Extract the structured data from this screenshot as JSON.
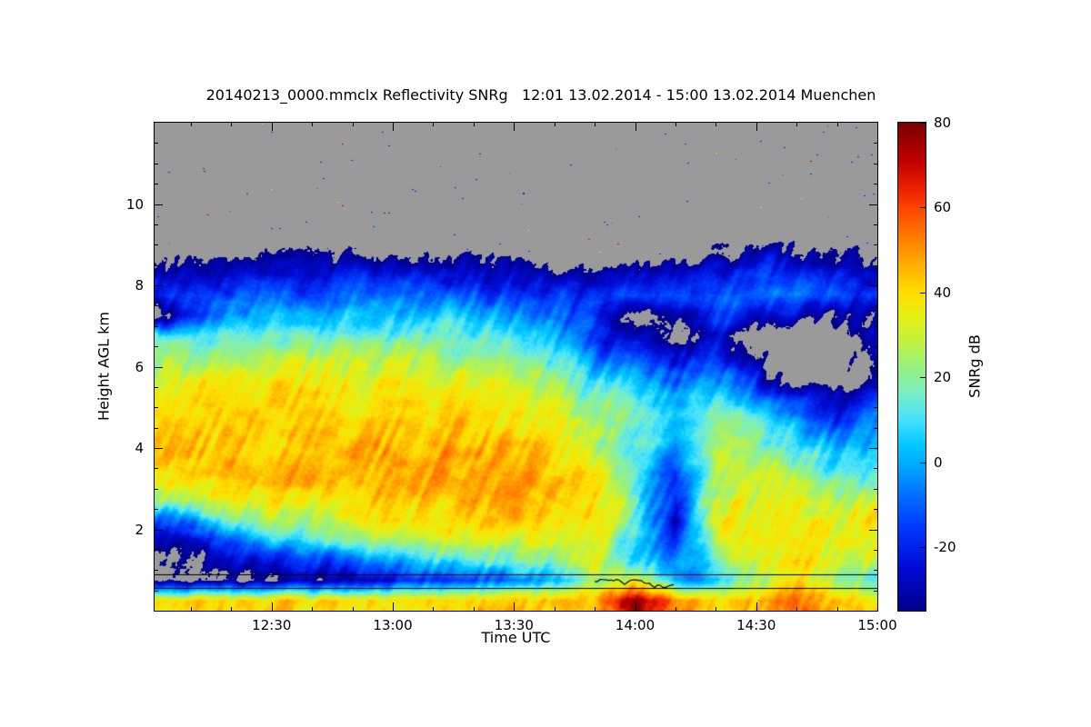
{
  "figure": {
    "title": "20140213_0000.mmclx Reflectivity SNRg   12:01 13.02.2014 - 15:00 13.02.2014 Muenchen",
    "background": "#ffffff"
  },
  "axes": {
    "x": {
      "label": "Time UTC",
      "range_minutes_utc": [
        721,
        900
      ],
      "major_ticks": [
        {
          "minutes": 750,
          "label": "12:30"
        },
        {
          "minutes": 780,
          "label": "13:00"
        },
        {
          "minutes": 810,
          "label": "13:30"
        },
        {
          "minutes": 840,
          "label": "14:00"
        },
        {
          "minutes": 870,
          "label": "14:30"
        },
        {
          "minutes": 900,
          "label": "15:00"
        }
      ],
      "minor_step_minutes": 10
    },
    "y": {
      "label": "Height AGL km",
      "range_km": [
        0,
        12
      ],
      "major_ticks": [
        {
          "km": 2,
          "label": "2"
        },
        {
          "km": 4,
          "label": "4"
        },
        {
          "km": 6,
          "label": "6"
        },
        {
          "km": 8,
          "label": "8"
        },
        {
          "km": 10,
          "label": "10"
        }
      ],
      "minor_step_km": 0.5
    }
  },
  "colorbar": {
    "label": "SNRg dB",
    "range_db": [
      -35,
      80
    ],
    "ticks": [
      {
        "db": 80,
        "label": "80"
      },
      {
        "db": 60,
        "label": "60"
      },
      {
        "db": 40,
        "label": "40"
      },
      {
        "db": 20,
        "label": "20"
      },
      {
        "db": 0,
        "label": "0"
      },
      {
        "db": -20,
        "label": "-20"
      }
    ],
    "nodata_color": "#9a9a9a",
    "stops": [
      [
        -35,
        0,
        0,
        140
      ],
      [
        -25,
        0,
        10,
        210
      ],
      [
        -15,
        0,
        60,
        255
      ],
      [
        -8,
        0,
        110,
        255
      ],
      [
        -2,
        0,
        160,
        255
      ],
      [
        4,
        0,
        200,
        255
      ],
      [
        10,
        70,
        225,
        255
      ],
      [
        16,
        120,
        238,
        200
      ],
      [
        22,
        150,
        240,
        130
      ],
      [
        28,
        190,
        242,
        70
      ],
      [
        34,
        228,
        240,
        20
      ],
      [
        40,
        255,
        222,
        0
      ],
      [
        46,
        255,
        180,
        0
      ],
      [
        52,
        255,
        132,
        0
      ],
      [
        58,
        255,
        84,
        0
      ],
      [
        64,
        240,
        36,
        0
      ],
      [
        71,
        190,
        0,
        0
      ],
      [
        80,
        122,
        0,
        0
      ]
    ]
  },
  "chart_data": {
    "type": "heatmap",
    "title": "20140213_0000.mmclx Reflectivity SNRg   12:01 13.02.2014 - 15:00 13.02.2014 Muenchen",
    "xlabel": "Time UTC",
    "ylabel": "Height AGL km",
    "value_label": "SNRg dB",
    "value_range_db": [
      -35,
      80
    ],
    "x_minutes_utc": [
      720,
      730,
      740,
      750,
      760,
      770,
      780,
      790,
      800,
      810,
      820,
      830,
      840,
      850,
      860,
      870,
      880,
      890,
      900
    ],
    "y_km": [
      0.25,
      0.75,
      1.25,
      1.75,
      2.25,
      2.75,
      3.25,
      3.75,
      4.25,
      4.75,
      5.25,
      5.75,
      6.25,
      6.75,
      7.25,
      7.75,
      8.25,
      8.75,
      9.25,
      9.75,
      10.25,
      10.75,
      11.25,
      11.75
    ],
    "nodata_value": -45,
    "columns": [
      [
        40,
        -38,
        -38,
        -30,
        -12,
        24,
        36,
        40,
        40,
        38,
        35,
        30,
        22,
        12,
        -42,
        -16,
        -24,
        -42,
        -45,
        -45,
        -45,
        -45,
        -45,
        -45
      ],
      [
        40,
        -38,
        -36,
        -26,
        -2,
        28,
        38,
        42,
        42,
        40,
        36,
        30,
        22,
        10,
        -20,
        -14,
        -26,
        -40,
        -45,
        -45,
        -45,
        -45,
        -45,
        -45
      ],
      [
        40,
        -38,
        -30,
        -12,
        14,
        32,
        40,
        42,
        42,
        40,
        36,
        32,
        24,
        14,
        -2,
        -14,
        -28,
        -40,
        -45,
        -45,
        -45,
        -45,
        -45,
        -45
      ],
      [
        40,
        -38,
        -26,
        4,
        24,
        36,
        42,
        44,
        43,
        40,
        37,
        33,
        26,
        16,
        2,
        -12,
        -26,
        -38,
        -45,
        -45,
        -45,
        -45,
        -45,
        -45
      ],
      [
        40,
        -36,
        -20,
        10,
        30,
        38,
        43,
        44,
        43,
        41,
        38,
        34,
        27,
        17,
        4,
        -10,
        -24,
        -38,
        -45,
        -45,
        -45,
        -45,
        -45,
        -45
      ],
      [
        40,
        -32,
        -12,
        18,
        34,
        40,
        44,
        45,
        44,
        42,
        39,
        35,
        28,
        18,
        6,
        -8,
        -22,
        -36,
        -45,
        -45,
        -45,
        -45,
        -45,
        -45
      ],
      [
        40,
        -26,
        0,
        25,
        38,
        43,
        45,
        46,
        44,
        42,
        39,
        35,
        28,
        18,
        6,
        -8,
        -22,
        -36,
        -45,
        -45,
        -45,
        -45,
        -45,
        -45
      ],
      [
        40,
        -20,
        10,
        30,
        40,
        44,
        46,
        46,
        44,
        42,
        38,
        34,
        27,
        17,
        4,
        -10,
        -24,
        -38,
        -45,
        -45,
        -45,
        -45,
        -45,
        -45
      ],
      [
        40,
        -16,
        15,
        32,
        40,
        43,
        45,
        44,
        43,
        40,
        36,
        32,
        24,
        14,
        2,
        -12,
        -26,
        -40,
        -45,
        -45,
        -45,
        -45,
        -45,
        -45
      ],
      [
        42,
        -10,
        20,
        34,
        40,
        42,
        43,
        42,
        40,
        38,
        34,
        28,
        20,
        10,
        -4,
        -15,
        -28,
        -42,
        -45,
        -45,
        -45,
        -45,
        -45,
        -45
      ],
      [
        42,
        0,
        25,
        36,
        40,
        41,
        41,
        40,
        38,
        34,
        28,
        20,
        12,
        0,
        -12,
        -20,
        -32,
        -45,
        -45,
        -45,
        -45,
        -45,
        -45,
        -45
      ],
      [
        46,
        20,
        32,
        38,
        40,
        40,
        38,
        35,
        30,
        24,
        16,
        6,
        -6,
        -16,
        -20,
        -24,
        -34,
        -45,
        -45,
        -45,
        -45,
        -45,
        -45,
        -45
      ],
      [
        78,
        30,
        10,
        8,
        12,
        15,
        12,
        10,
        12,
        15,
        10,
        0,
        -10,
        -25,
        -40,
        -10,
        -25,
        -45,
        -45,
        -45,
        -45,
        -45,
        -45,
        -45
      ],
      [
        55,
        -5,
        -15,
        -25,
        -30,
        -25,
        -15,
        -8,
        0,
        5,
        0,
        -12,
        -25,
        -40,
        -30,
        -12,
        -26,
        -40,
        -45,
        -45,
        -45,
        -45,
        -45,
        -45
      ],
      [
        42,
        5,
        22,
        32,
        35,
        30,
        22,
        26,
        25,
        15,
        5,
        -8,
        -20,
        -30,
        -18,
        -10,
        -20,
        -34,
        -45,
        -45,
        -45,
        -45,
        -45,
        -45
      ],
      [
        44,
        25,
        36,
        40,
        38,
        34,
        30,
        26,
        20,
        10,
        -5,
        -20,
        -35,
        -45,
        -25,
        -10,
        -18,
        -30,
        -45,
        -45,
        -45,
        -45,
        -45,
        -45
      ],
      [
        55,
        38,
        42,
        42,
        40,
        34,
        26,
        18,
        8,
        -5,
        -18,
        -45,
        -45,
        -45,
        -28,
        -12,
        -20,
        -32,
        -45,
        -45,
        -45,
        -45,
        -45,
        -45
      ],
      [
        42,
        22,
        32,
        36,
        33,
        26,
        16,
        6,
        -6,
        -18,
        -30,
        -45,
        -45,
        -45,
        -30,
        -12,
        -20,
        -32,
        -45,
        -45,
        -45,
        -45,
        -45,
        -45
      ],
      [
        40,
        12,
        26,
        33,
        35,
        30,
        20,
        10,
        0,
        -10,
        -20,
        -30,
        -28,
        -25,
        -30,
        -16,
        -24,
        -36,
        -45,
        -45,
        -45,
        -45,
        -45,
        -45
      ]
    ],
    "overlay_lines_km": [
      0.9,
      0.55
    ],
    "overlay_trace": {
      "t_start_min": 830,
      "t_end_min": 850,
      "h_km": 0.8
    }
  }
}
